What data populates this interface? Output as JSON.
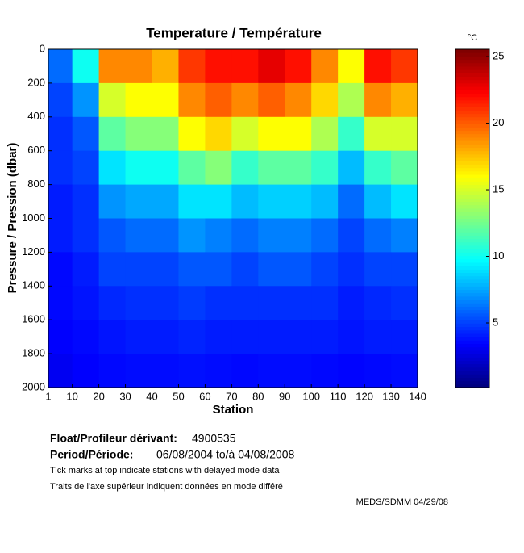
{
  "chart_data": {
    "type": "heatmap",
    "title": "Temperature / Température",
    "xlabel": "Station",
    "ylabel": "Pressure / Pression (dbar)",
    "colorbar_label": "°C",
    "xlim": [
      1,
      140
    ],
    "xticks": [
      1,
      10,
      20,
      30,
      40,
      50,
      60,
      70,
      80,
      90,
      100,
      110,
      120,
      130,
      140
    ],
    "ylim": [
      2000,
      0
    ],
    "yticks": [
      0,
      200,
      400,
      600,
      800,
      1000,
      1200,
      1400,
      1600,
      1800,
      2000
    ],
    "clim": [
      0.15,
      25.55
    ],
    "cticks": [
      5,
      10,
      15,
      20,
      25
    ],
    "colormap": "jet",
    "xbins": [
      1,
      10,
      20,
      30,
      40,
      50,
      60,
      70,
      80,
      90,
      100,
      110,
      120,
      130,
      140
    ],
    "ybins": [
      0,
      200,
      400,
      600,
      800,
      1000,
      1200,
      1400,
      1600,
      1800,
      2000
    ],
    "z": [
      [
        6,
        10,
        19,
        19,
        18,
        21,
        22,
        22,
        23,
        22,
        19,
        16,
        22,
        21
      ],
      [
        5,
        7,
        15,
        16,
        16,
        19,
        20,
        19,
        20,
        19,
        17,
        14,
        19,
        18
      ],
      [
        4.5,
        5.5,
        12,
        13,
        13,
        16,
        17,
        15,
        16,
        16,
        14,
        11,
        15,
        15
      ],
      [
        4.5,
        5,
        9,
        10,
        10,
        12,
        13,
        11,
        12,
        12,
        11,
        8,
        11,
        12
      ],
      [
        4,
        4.5,
        7,
        7.5,
        7.5,
        9,
        9,
        8,
        8.5,
        8.5,
        8,
        6,
        8,
        9
      ],
      [
        4,
        4.5,
        5.5,
        6,
        6,
        7,
        6.5,
        6,
        6.5,
        6.5,
        6,
        5,
        6,
        6.5
      ],
      [
        3.5,
        4,
        5,
        5,
        5,
        5.5,
        5.5,
        5,
        5.5,
        5.5,
        5,
        4.5,
        5,
        5
      ],
      [
        3.5,
        3.8,
        4.3,
        4.5,
        4.5,
        4.8,
        4.5,
        4.5,
        4.5,
        4.5,
        4.5,
        4,
        4.3,
        4.5
      ],
      [
        3.3,
        3.5,
        3.8,
        4,
        4,
        4.2,
        4,
        4,
        4,
        4,
        4,
        3.8,
        4,
        4
      ],
      [
        3,
        3.3,
        3.5,
        3.6,
        3.6,
        3.7,
        3.6,
        3.5,
        3.6,
        3.6,
        3.5,
        3.4,
        3.5,
        3.6
      ]
    ]
  },
  "footer": {
    "float_label": "Float/Profileur dérivant:",
    "float_id": "4900535",
    "period_label": "Period/Période:",
    "period": "06/08/2004  to/à  04/08/2008",
    "note_en": "Tick marks at top indicate stations with delayed mode data",
    "note_fr": "Traits de l'axe supérieur indiquent données en mode différé",
    "credit": "MEDS/SDMM  04/29/08"
  }
}
